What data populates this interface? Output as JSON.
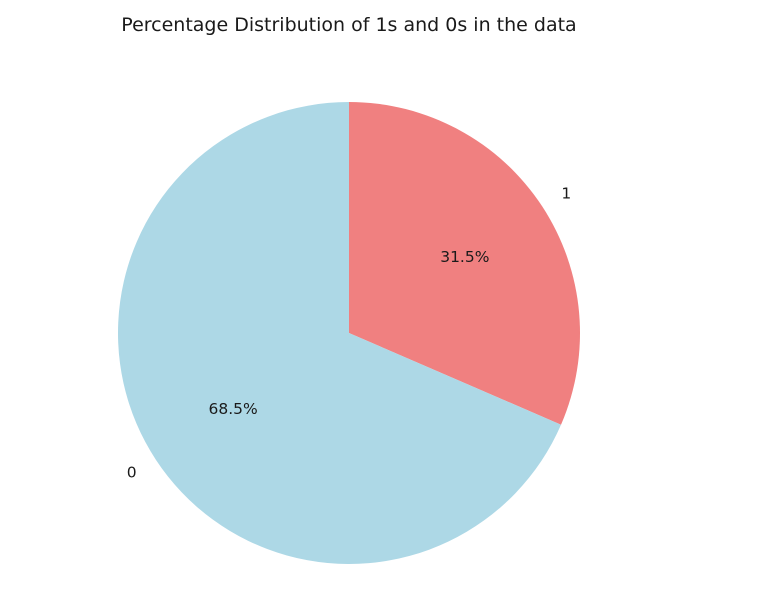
{
  "chart_data": {
    "type": "pie",
    "title": "Percentage Distribution of 1s and 0s in the data",
    "slices": [
      {
        "label": "1",
        "value": 31.5,
        "pct_label": "31.5%",
        "color": "#f08080"
      },
      {
        "label": "0",
        "value": 68.5,
        "pct_label": "68.5%",
        "color": "#add8e6"
      }
    ],
    "start_angle_deg": 90,
    "direction": "clockwise"
  }
}
